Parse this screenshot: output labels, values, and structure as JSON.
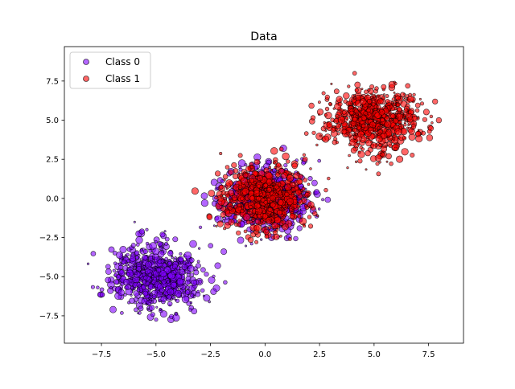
{
  "chart_data": {
    "type": "scatter",
    "title": "Data",
    "xlabel": "",
    "ylabel": "",
    "xlim": [
      -9.2,
      9.1
    ],
    "ylim": [
      -9.25,
      9.7
    ],
    "xticks": [
      -7.5,
      -5.0,
      -2.5,
      0.0,
      2.5,
      5.0,
      7.5
    ],
    "xtick_labels": [
      "−7.5",
      "−5.0",
      "−2.5",
      "0.0",
      "2.5",
      "5.0",
      "7.5"
    ],
    "yticks": [
      -7.5,
      -5.0,
      -2.5,
      0.0,
      2.5,
      5.0,
      7.5
    ],
    "ytick_labels": [
      "−7.5",
      "−5.0",
      "−2.5",
      "0.0",
      "2.5",
      "5.0",
      "7.5"
    ],
    "grid": false,
    "legend": "upper-left",
    "series": [
      {
        "name": "Class 0",
        "color": "#8000ff",
        "alpha": 0.6,
        "edgecolor": "#000000",
        "clusters": [
          {
            "center": [
              -5,
              -5
            ],
            "std": 1.0
          },
          {
            "center": [
              0,
              0
            ],
            "std": 1.0
          }
        ]
      },
      {
        "name": "Class 1",
        "color": "#ff0000",
        "alpha": 0.6,
        "edgecolor": "#000000",
        "clusters": [
          {
            "center": [
              0,
              0
            ],
            "std": 1.0
          },
          {
            "center": [
              5,
              5
            ],
            "std": 1.0
          }
        ]
      }
    ]
  }
}
